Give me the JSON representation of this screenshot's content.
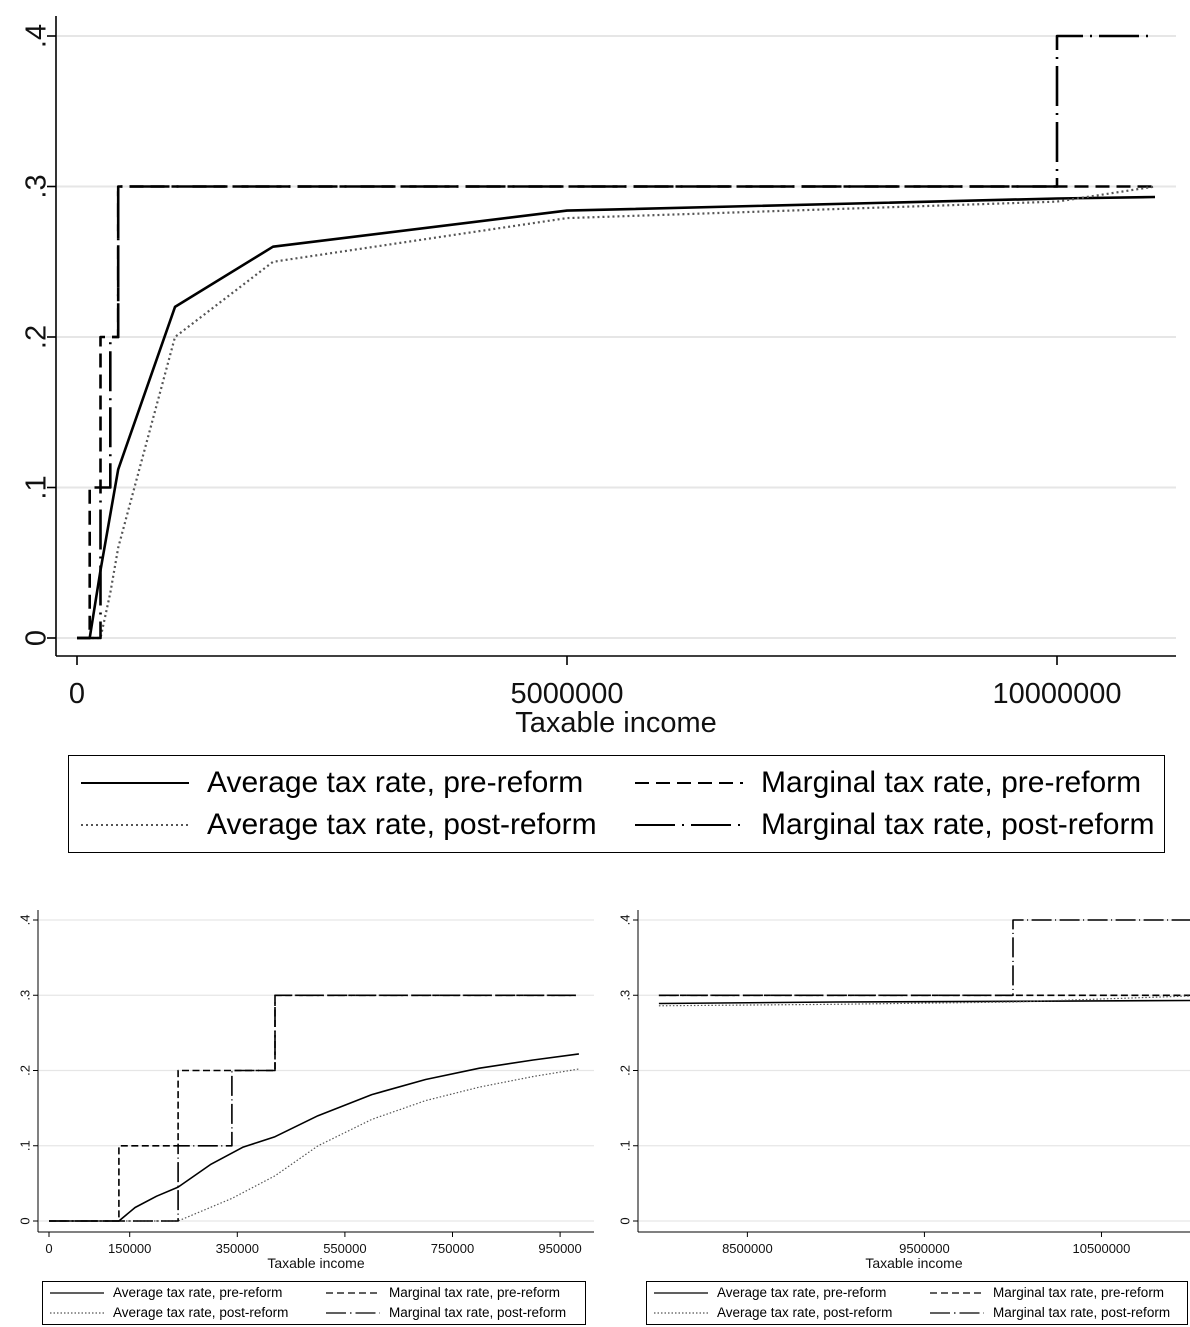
{
  "legend": {
    "avg_pre": "Average tax rate, pre-reform",
    "avg_post": "Average tax rate, post-reform",
    "mtr_pre": "Marginal tax rate, pre-reform",
    "mtr_post": "Marginal tax rate, post-reform"
  },
  "colors": {
    "line": "#000000",
    "dotted": "#555555",
    "grid": "#e6e6e6",
    "axis": "#000000"
  },
  "chart_data": [
    {
      "type": "line",
      "xlabel": "Taxable income",
      "ylabel": "",
      "xlim": [
        0,
        11000000
      ],
      "ylim": [
        0,
        0.4
      ],
      "x_ticks": [
        0,
        5000000,
        10000000
      ],
      "x_tick_labels": [
        "0",
        "5000000",
        "10000000"
      ],
      "y_ticks": [
        0,
        0.1,
        0.2,
        0.3,
        0.4
      ],
      "y_tick_labels": [
        "0",
        ".1",
        ".2",
        ".3",
        ".4"
      ],
      "grid": true,
      "legend_position": "bottom",
      "series": [
        {
          "name": "Average tax rate, pre-reform",
          "style": "solid",
          "x": [
            0,
            130000,
            240000,
            420000,
            1000000,
            2000000,
            5000000,
            10000000,
            11000000
          ],
          "y": [
            0,
            0,
            0.045,
            0.112,
            0.22,
            0.26,
            0.284,
            0.292,
            0.293
          ]
        },
        {
          "name": "Marginal tax rate, pre-reform",
          "style": "dash",
          "x": [
            0,
            130000,
            130000,
            240000,
            240000,
            420000,
            420000,
            11000000
          ],
          "y": [
            0,
            0,
            0.1,
            0.1,
            0.2,
            0.2,
            0.3,
            0.3
          ]
        },
        {
          "name": "Average tax rate, post-reform",
          "style": "dot",
          "x": [
            0,
            240000,
            340000,
            420000,
            1000000,
            2000000,
            5000000,
            10000000,
            11000000
          ],
          "y": [
            0,
            0,
            0.03,
            0.06,
            0.2,
            0.25,
            0.279,
            0.29,
            0.3
          ]
        },
        {
          "name": "Marginal tax rate, post-reform",
          "style": "longdashdot",
          "x": [
            0,
            240000,
            240000,
            340000,
            340000,
            420000,
            420000,
            10000000,
            10000000,
            11000000
          ],
          "y": [
            0,
            0,
            0.1,
            0.1,
            0.2,
            0.2,
            0.3,
            0.3,
            0.4,
            0.4
          ]
        }
      ]
    },
    {
      "type": "line",
      "xlabel": "Taxable income",
      "ylabel": "",
      "xlim": [
        0,
        1000000
      ],
      "ylim": [
        0,
        0.4
      ],
      "x_ticks": [
        0,
        150000,
        350000,
        550000,
        750000,
        950000
      ],
      "x_tick_labels": [
        "0",
        "150000",
        "350000",
        "550000",
        "750000",
        "950000"
      ],
      "y_ticks": [
        0,
        0.1,
        0.2,
        0.3,
        0.4
      ],
      "y_tick_labels": [
        "0",
        ".1",
        ".2",
        ".3",
        ".4"
      ],
      "grid": true,
      "legend_position": "bottom",
      "series": [
        {
          "name": "Average tax rate, pre-reform",
          "style": "solid",
          "x": [
            0,
            130000,
            160000,
            200000,
            240000,
            300000,
            360000,
            420000,
            500000,
            600000,
            700000,
            800000,
            900000,
            985000
          ],
          "y": [
            0,
            0,
            0.018,
            0.033,
            0.045,
            0.075,
            0.098,
            0.112,
            0.14,
            0.168,
            0.188,
            0.203,
            0.214,
            0.222
          ]
        },
        {
          "name": "Marginal tax rate, pre-reform",
          "style": "dash",
          "x": [
            0,
            130000,
            130000,
            240000,
            240000,
            420000,
            420000,
            985000
          ],
          "y": [
            0,
            0,
            0.1,
            0.1,
            0.2,
            0.2,
            0.3,
            0.3
          ]
        },
        {
          "name": "Average tax rate, post-reform",
          "style": "dot",
          "x": [
            0,
            240000,
            340000,
            420000,
            500000,
            600000,
            700000,
            800000,
            900000,
            985000
          ],
          "y": [
            0,
            0,
            0.03,
            0.06,
            0.1,
            0.135,
            0.16,
            0.178,
            0.192,
            0.202
          ]
        },
        {
          "name": "Marginal tax rate, post-reform",
          "style": "longdashdot",
          "x": [
            0,
            240000,
            240000,
            340000,
            340000,
            420000,
            420000,
            985000
          ],
          "y": [
            0,
            0,
            0.1,
            0.1,
            0.2,
            0.2,
            0.3,
            0.3
          ]
        }
      ]
    },
    {
      "type": "line",
      "xlabel": "Taxable income",
      "ylabel": "",
      "xlim": [
        7950000,
        11000000
      ],
      "ylim": [
        0,
        0.4
      ],
      "x_ticks": [
        8500000,
        9500000,
        10500000
      ],
      "x_tick_labels": [
        "8500000",
        "9500000",
        "10500000"
      ],
      "y_ticks": [
        0,
        0.1,
        0.2,
        0.3,
        0.4
      ],
      "y_tick_labels": [
        "0",
        ".1",
        ".2",
        ".3",
        ".4"
      ],
      "grid": true,
      "legend_position": "bottom",
      "series": [
        {
          "name": "Average tax rate, pre-reform",
          "style": "solid",
          "x": [
            8000000,
            9000000,
            10000000,
            11000000
          ],
          "y": [
            0.289,
            0.291,
            0.292,
            0.293
          ]
        },
        {
          "name": "Marginal tax rate, pre-reform",
          "style": "dash",
          "x": [
            8000000,
            11000000
          ],
          "y": [
            0.3,
            0.3
          ]
        },
        {
          "name": "Average tax rate, post-reform",
          "style": "dot",
          "x": [
            8000000,
            9000000,
            10000000,
            11000000
          ],
          "y": [
            0.286,
            0.288,
            0.291,
            0.299
          ]
        },
        {
          "name": "Marginal tax rate, post-reform",
          "style": "longdashdot",
          "x": [
            8000000,
            10000000,
            10000000,
            11000000
          ],
          "y": [
            0.3,
            0.3,
            0.4,
            0.4
          ]
        }
      ]
    }
  ]
}
